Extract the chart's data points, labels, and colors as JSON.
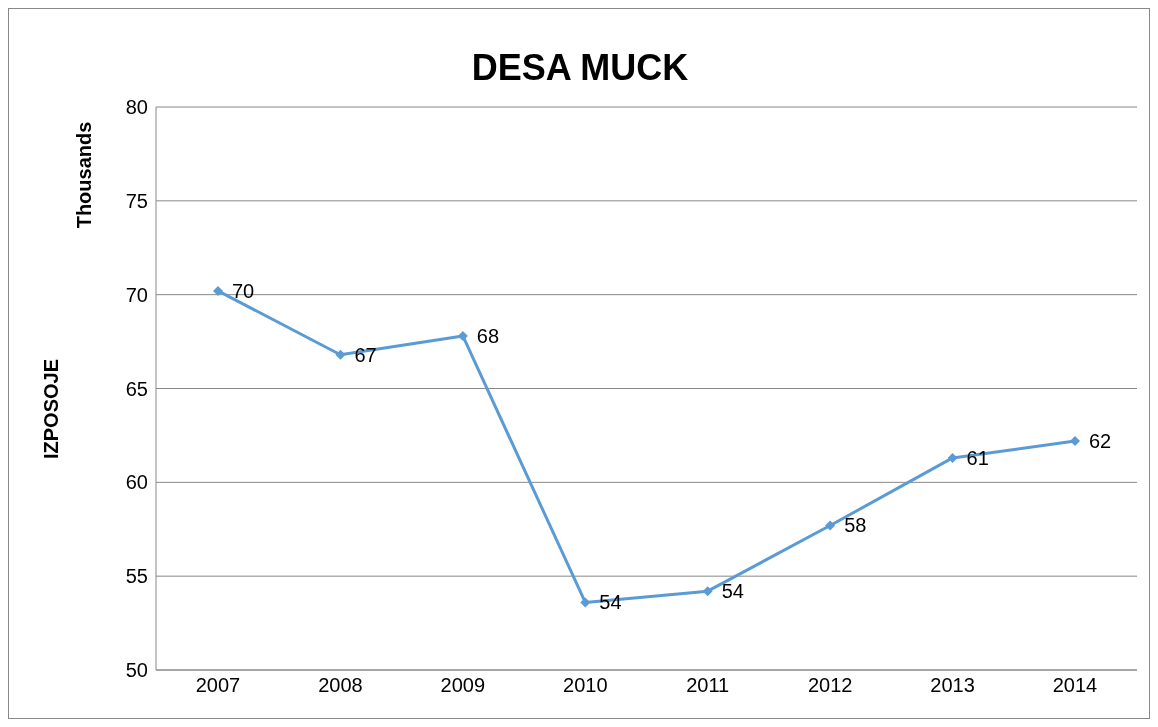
{
  "chart_data": {
    "type": "line",
    "title": "DESA MUCK",
    "ylabel": "IZPOSOJE",
    "annotations": [
      "Thousands"
    ],
    "categories": [
      "2007",
      "2008",
      "2009",
      "2010",
      "2011",
      "2012",
      "2013",
      "2014"
    ],
    "series": [
      {
        "color": "#5b9bd5",
        "values": [
          70.2,
          66.8,
          67.8,
          53.6,
          54.2,
          57.7,
          61.3,
          62.2
        ],
        "value_labels": [
          "70",
          "67",
          "68",
          "54",
          "54",
          "58",
          "61",
          "62"
        ]
      }
    ],
    "ylim": [
      50,
      80
    ],
    "yticks": [
      50,
      55,
      60,
      65,
      70,
      75,
      80
    ],
    "grid": "y",
    "marker": "diamond",
    "line_style": "solid",
    "legend": false
  }
}
